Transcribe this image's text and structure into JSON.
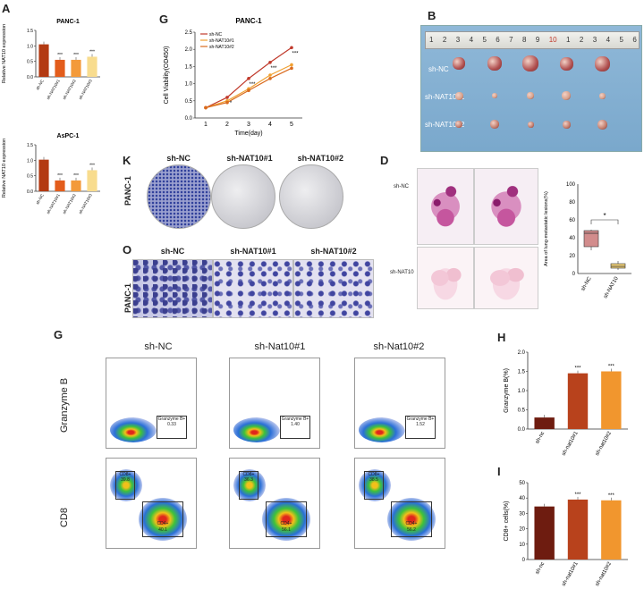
{
  "panels": {
    "A": "A",
    "G_top": "G",
    "B": "B",
    "K": "K",
    "D": "D",
    "O": "O",
    "G_bottom": "G",
    "H": "H",
    "I": "I"
  },
  "panel_a": {
    "charts": [
      {
        "type": "bar",
        "title": "PANC-1",
        "ylabel": "Relative NAT10 expression",
        "categories": [
          "sh-NC",
          "sh-NAT10#1",
          "sh-NAT10#2",
          "sh-NAT10#3"
        ],
        "values": [
          1.05,
          0.55,
          0.55,
          0.65
        ],
        "ylim": [
          0,
          1.5
        ],
        "yticks": [
          "0.0",
          "0.5",
          "1.0",
          "1.5"
        ],
        "significance": [
          "",
          "***",
          "***",
          "***"
        ],
        "colors": [
          "#b33a12",
          "#e35d1c",
          "#f39a3a",
          "#f8dc8e"
        ]
      },
      {
        "type": "bar",
        "title": "AsPC-1",
        "ylabel": "Relative NAT10 expression",
        "categories": [
          "sh-NC",
          "sh-NAT10#1",
          "sh-NAT10#2",
          "sh-NAT10#3"
        ],
        "values": [
          1.02,
          0.35,
          0.35,
          0.68
        ],
        "ylim": [
          0,
          1.5
        ],
        "yticks": [
          "0.0",
          "0.5",
          "1.0",
          "1.5"
        ],
        "significance": [
          "",
          "***",
          "***",
          "***"
        ],
        "colors": [
          "#b33a12",
          "#e35d1c",
          "#f39a3a",
          "#f8dc8e"
        ]
      }
    ]
  },
  "panel_g_top": {
    "chart_data": {
      "type": "line",
      "title": "PANC-1",
      "xlabel": "Time(day)",
      "ylabel": "Cell Viability(OD450)",
      "x": [
        1,
        2,
        3,
        4,
        5
      ],
      "xlim": [
        0.5,
        5.5
      ],
      "ylim": [
        0,
        2.5
      ],
      "yticks": [
        "0.0",
        "0.5",
        "1.0",
        "1.5",
        "2.0",
        "2.5"
      ],
      "series": [
        {
          "name": "sh-NC",
          "values": [
            0.3,
            0.6,
            1.15,
            1.62,
            2.05
          ],
          "color": "#c0392b"
        },
        {
          "name": "sh-NAT10#1",
          "values": [
            0.3,
            0.5,
            0.85,
            1.25,
            1.55
          ],
          "color": "#f0a030"
        },
        {
          "name": "sh-NAT10#2",
          "values": [
            0.3,
            0.45,
            0.8,
            1.15,
            1.45
          ],
          "color": "#d96a1e"
        }
      ],
      "annotations": [
        "*",
        "***",
        "***",
        "***"
      ]
    }
  },
  "panel_b": {
    "ruler_numbers": [
      "1",
      "2",
      "3",
      "4",
      "5",
      "6",
      "7",
      "8",
      "9",
      "10",
      "1",
      "2",
      "3",
      "4",
      "5",
      "6"
    ],
    "rows": [
      "sh-NC",
      "sh-NAT10#1",
      "sh-NAT10#2"
    ]
  },
  "panel_k": {
    "cols": [
      "sh-NC",
      "sh-NAT10#1",
      "sh-NAT10#2"
    ],
    "row": "PANC-1"
  },
  "panel_o": {
    "cols": [
      "sh-NC",
      "sh-NAT10#1",
      "sh-NAT10#2"
    ],
    "row": "PANC-1"
  },
  "panel_d": {
    "rows": [
      "sh-NC",
      "sh-NAT10"
    ],
    "chart_data": {
      "type": "box",
      "ylabel": "Area of lung-metastatic lesions(%)",
      "categories": [
        "sh-NC",
        "sh-NAT10"
      ],
      "ylim": [
        0,
        100
      ],
      "yticks": [
        "0",
        "20",
        "40",
        "60",
        "80",
        "100"
      ],
      "boxes": [
        {
          "min": 26,
          "q1": 30,
          "median": 45,
          "q3": 48,
          "max": 49,
          "color": "#d28c8c"
        },
        {
          "min": 4,
          "q1": 6,
          "median": 8,
          "q3": 11,
          "max": 14,
          "color": "#f2d37a"
        }
      ],
      "significance": "*"
    }
  },
  "panel_g_bottom": {
    "cols": [
      "sh-NC",
      "sh-Nat10#1",
      "sh-Nat10#2"
    ],
    "rows": [
      "Granzyme B",
      "CD8"
    ],
    "granzyme_gates": [
      {
        "label": "Granzyme B+",
        "value": "0.33"
      },
      {
        "label": "Granzyme B+",
        "value": "1.40"
      },
      {
        "label": "Granzyme B+",
        "value": "1.52"
      }
    ],
    "cd8_gates": [
      {
        "cd8_label": "CD8+",
        "cd8_value": "39.8",
        "cd4_label": "CD4+",
        "cd4_value": "40.1"
      },
      {
        "cd8_label": "CD8+",
        "cd8_value": "36.3",
        "cd4_label": "CD4+",
        "cd4_value": "56.1"
      },
      {
        "cd8_label": "CD8+",
        "cd8_value": "38.5",
        "cd4_label": "CD4+",
        "cd4_value": "56.2"
      }
    ]
  },
  "panel_h": {
    "chart_data": {
      "type": "bar",
      "ylabel": "Granzyme B(%)",
      "categories": [
        "sh-nc",
        "sh-nat10#1",
        "sh-nat10#2"
      ],
      "values": [
        0.3,
        1.45,
        1.5
      ],
      "ylim": [
        0,
        2.0
      ],
      "yticks": [
        "0.0",
        "0.5",
        "1.0",
        "1.5",
        "2.0"
      ],
      "significance": [
        "",
        "***",
        "***"
      ],
      "colors": [
        "#6e1c10",
        "#b8421c",
        "#f1962e"
      ]
    }
  },
  "panel_i": {
    "chart_data": {
      "type": "bar",
      "ylabel": "CD8+ cells(%)",
      "categories": [
        "sh-nc",
        "sh-nat10#1",
        "sh-nat10#2"
      ],
      "values": [
        34.5,
        39,
        38.5
      ],
      "ylim": [
        0,
        50
      ],
      "yticks": [
        "0",
        "10",
        "20",
        "30",
        "40",
        "50"
      ],
      "significance": [
        "",
        "***",
        "***"
      ],
      "colors": [
        "#6e1c10",
        "#b8421c",
        "#f1962e"
      ]
    }
  }
}
